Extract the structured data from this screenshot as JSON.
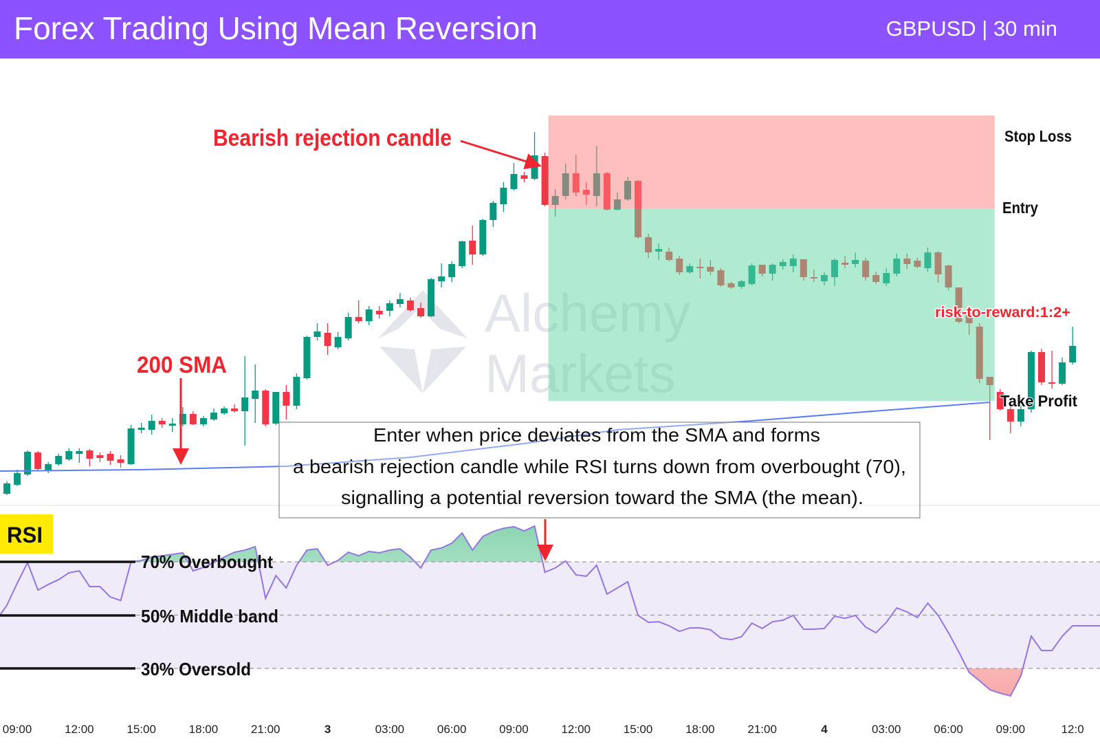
{
  "header": {
    "title": "Forex Trading Using Mean Reversion",
    "subtitle": "GBPUSD | 30 min"
  },
  "colors": {
    "header_bg": "#8c52ff",
    "bull": "#089981",
    "bear": "#f23645",
    "sma": "#5b7cf5",
    "rsi_line": "#9575e0",
    "stop_zone": "#ffbfbf",
    "target_zone": "#b0ead0",
    "annotation_red": "#f0252f",
    "rsi_badge": "#ffea00"
  },
  "chart_data": [
    {
      "type": "candlestick",
      "title": "",
      "interval": "30 min",
      "price_axis": "not shown (relative price units)",
      "x_tick_labels": [
        "09:00",
        "12:00",
        "15:00",
        "18:00",
        "21:00",
        "3",
        "03:00",
        "06:00",
        "09:00",
        "12:00",
        "15:00",
        "18:00",
        "21:00",
        "4",
        "03:00",
        "06:00",
        "09:00",
        "12:0"
      ],
      "candles_ohlc": [
        [
          82,
          100,
          80,
          97
        ],
        [
          95,
          117,
          93,
          112
        ],
        [
          110,
          145,
          108,
          143
        ],
        [
          142,
          144,
          115,
          118
        ],
        [
          115,
          128,
          112,
          125
        ],
        [
          125,
          140,
          123,
          137
        ],
        [
          132,
          148,
          130,
          144
        ],
        [
          140,
          148,
          127,
          144
        ],
        [
          145,
          147,
          122,
          133
        ],
        [
          138,
          142,
          128,
          134
        ],
        [
          140,
          144,
          124,
          130
        ],
        [
          132,
          138,
          120,
          127
        ],
        [
          125,
          182,
          124,
          177
        ],
        [
          175,
          185,
          170,
          178
        ],
        [
          175,
          197,
          168,
          188
        ],
        [
          188,
          192,
          178,
          183
        ],
        [
          181,
          192,
          172,
          184
        ],
        [
          183,
          208,
          180,
          198
        ],
        [
          198,
          202,
          182,
          183
        ],
        [
          183,
          195,
          180,
          192
        ],
        [
          190,
          206,
          188,
          200
        ],
        [
          199,
          209,
          197,
          206
        ],
        [
          206,
          212,
          200,
          202
        ],
        [
          202,
          282,
          152,
          222
        ],
        [
          220,
          270,
          185,
          232
        ],
        [
          232,
          234,
          180,
          183
        ],
        [
          184,
          230,
          182,
          230
        ],
        [
          230,
          240,
          190,
          210
        ],
        [
          210,
          257,
          205,
          252
        ],
        [
          250,
          312,
          248,
          310
        ],
        [
          310,
          330,
          305,
          318
        ],
        [
          316,
          330,
          284,
          297
        ],
        [
          295,
          317,
          292,
          310
        ],
        [
          308,
          345,
          305,
          339
        ],
        [
          339,
          363,
          330,
          333
        ],
        [
          333,
          355,
          327,
          350
        ],
        [
          348,
          355,
          337,
          343
        ],
        [
          348,
          363,
          340,
          359
        ],
        [
          358,
          374,
          353,
          365
        ],
        [
          363,
          367,
          347,
          349
        ],
        [
          352,
          360,
          338,
          340
        ],
        [
          340,
          396,
          339,
          394
        ],
        [
          391,
          417,
          382,
          398
        ],
        [
          397,
          420,
          390,
          416
        ],
        [
          413,
          450,
          410,
          449
        ],
        [
          450,
          472,
          415,
          430
        ],
        [
          430,
          482,
          428,
          480
        ],
        [
          480,
          508,
          470,
          505
        ],
        [
          503,
          535,
          492,
          527
        ],
        [
          525,
          563,
          523,
          547
        ],
        [
          545,
          550,
          535,
          540
        ],
        [
          540,
          608,
          538,
          574
        ],
        [
          573,
          578,
          500,
          502
        ],
        [
          502,
          525,
          485,
          515
        ],
        [
          515,
          562,
          510,
          548
        ],
        [
          548,
          575,
          515,
          520
        ],
        [
          524,
          535,
          502,
          517
        ],
        [
          515,
          588,
          500,
          548
        ],
        [
          548,
          550,
          494,
          495
        ],
        [
          495,
          520,
          494,
          510
        ],
        [
          510,
          543,
          508,
          537
        ],
        [
          537,
          538,
          453,
          455
        ],
        [
          455,
          460,
          425,
          433
        ],
        [
          434,
          446,
          422,
          438
        ],
        [
          434,
          440,
          420,
          422
        ],
        [
          424,
          428,
          400,
          404
        ],
        [
          404,
          417,
          402,
          413
        ],
        [
          412,
          424,
          395,
          410
        ],
        [
          412,
          422,
          400,
          405
        ],
        [
          407,
          410,
          383,
          385
        ],
        [
          388,
          390,
          380,
          382
        ],
        [
          383,
          393,
          380,
          391
        ],
        [
          387,
          417,
          385,
          414
        ],
        [
          415,
          415,
          398,
          402
        ],
        [
          402,
          417,
          392,
          415
        ],
        [
          413,
          423,
          408,
          419
        ],
        [
          413,
          430,
          404,
          424
        ],
        [
          423,
          423,
          392,
          397
        ],
        [
          397,
          408,
          390,
          395
        ],
        [
          391,
          404,
          385,
          400
        ],
        [
          397,
          424,
          384,
          422
        ],
        [
          418,
          428,
          410,
          415
        ],
        [
          416,
          433,
          411,
          422
        ],
        [
          421,
          425,
          392,
          397
        ],
        [
          400,
          405,
          387,
          390
        ],
        [
          388,
          410,
          384,
          403
        ],
        [
          402,
          431,
          398,
          424
        ],
        [
          424,
          431,
          409,
          416
        ],
        [
          421,
          425,
          410,
          412
        ],
        [
          410,
          440,
          405,
          433
        ],
        [
          433,
          435,
          389,
          401
        ],
        [
          414,
          415,
          378,
          382
        ],
        [
          382,
          382,
          330,
          332
        ],
        [
          345,
          350,
          313,
          330
        ],
        [
          325,
          330,
          243,
          249
        ],
        [
          252,
          252,
          160,
          240
        ],
        [
          230,
          234,
          203,
          205
        ],
        [
          205,
          210,
          170,
          187
        ],
        [
          187,
          210,
          180,
          205
        ],
        [
          205,
          290,
          200,
          288
        ],
        [
          288,
          293,
          240,
          244
        ],
        [
          244,
          290,
          235,
          242
        ],
        [
          242,
          280,
          240,
          273
        ],
        [
          273,
          325,
          270,
          297
        ]
      ],
      "sma": {
        "name": "200 SMA",
        "points": [
          [
            1,
            115
          ],
          [
            14,
            117
          ],
          [
            28,
            122
          ],
          [
            40,
            135
          ],
          [
            51,
            155
          ],
          [
            60,
            175
          ],
          [
            73,
            188
          ],
          [
            83,
            200
          ],
          [
            96,
            215
          ]
        ]
      },
      "trade": {
        "stop_loss": 632,
        "entry": 497,
        "take_profit": 217,
        "start_candle": 54,
        "end_candle": 96
      },
      "annotations": {
        "bearish": "Bearish rejection candle",
        "sma": "200 SMA",
        "stop_loss": "Stop Loss",
        "entry": "Entry",
        "take_profit": "Take Profit",
        "rr": "risk-to-reward:1:2+",
        "note": [
          "Enter when price deviates from the SMA and forms",
          "a bearish rejection candle while RSI turns down from overbought (70),",
          "signalling a potential reversion toward the SMA (the mean)."
        ]
      },
      "watermark": [
        "Alchemy",
        "Markets"
      ]
    },
    {
      "type": "line",
      "title": "RSI",
      "ylim": [
        0,
        100
      ],
      "levels": [
        {
          "value": 70,
          "label": "70% Overbought"
        },
        {
          "value": 50,
          "label": "50% Middle band"
        },
        {
          "value": 30,
          "label": "30% Oversold"
        }
      ],
      "values": [
        53.7,
        62,
        69.7,
        59.4,
        61.5,
        63.3,
        65.9,
        66.6,
        60.7,
        60.7,
        56.8,
        55.5,
        70,
        70.5,
        71.8,
        72.3,
        72.8,
        73.4,
        66.6,
        67.9,
        69.7,
        71.8,
        73.6,
        74.4,
        75.7,
        56.3,
        64.8,
        60.2,
        68.7,
        74.4,
        74.9,
        68.7,
        70.5,
        73.6,
        72.3,
        73.9,
        73.4,
        74.4,
        74.9,
        71.8,
        67.7,
        74.4,
        75.2,
        77,
        80.8,
        74.4,
        79.5,
        81.4,
        82.6,
        83.2,
        81.6,
        83.4,
        66.1,
        67.7,
        70.3,
        65.1,
        64.6,
        68.7,
        57.9,
        60.2,
        62.5,
        49.9,
        47.3,
        47.5,
        46,
        43.9,
        45.2,
        45.2,
        44.5,
        41.4,
        40.8,
        41.9,
        47,
        45,
        47.5,
        48.1,
        49.9,
        44.7,
        44.7,
        45,
        49.6,
        48.8,
        49.9,
        45.5,
        43.4,
        47.3,
        52.7,
        51.2,
        49.1,
        54.5,
        49.9,
        43.4,
        36.2,
        28.5,
        25.4,
        22,
        20.7,
        19.7,
        27.2,
        42.1,
        36.7,
        36.7,
        42.1,
        46
      ]
    }
  ]
}
